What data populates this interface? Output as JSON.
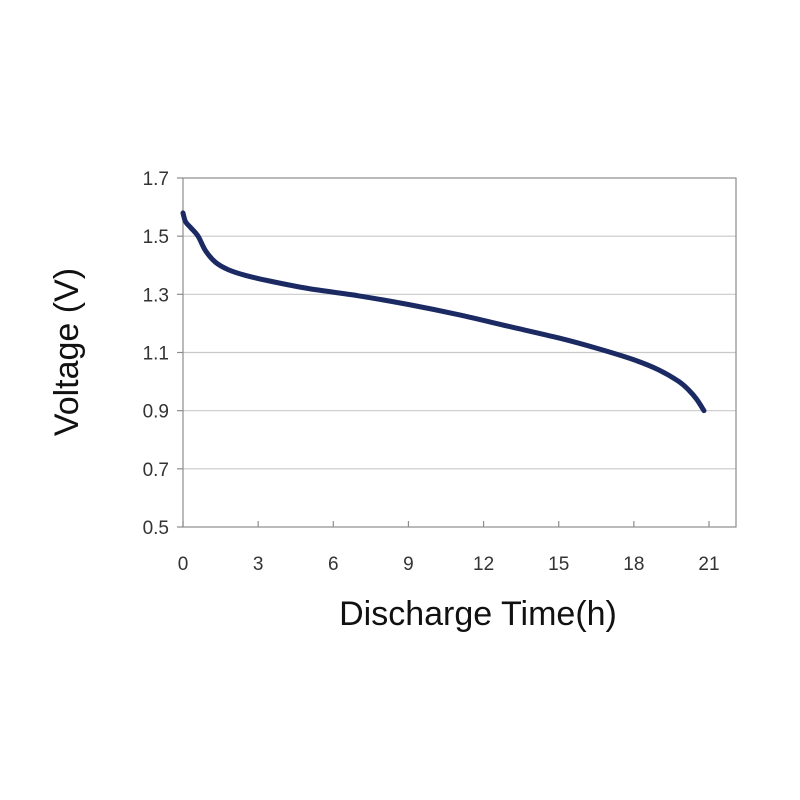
{
  "chart_data": {
    "type": "line",
    "title": "",
    "xlabel": "Discharge Time(h)",
    "ylabel": "Voltage (V)",
    "xlim": [
      0,
      22
    ],
    "ylim": [
      0.5,
      1.7
    ],
    "xticks": [
      "0",
      "3",
      "6",
      "9",
      "12",
      "15",
      "18",
      "21"
    ],
    "yticks": [
      "0.5",
      "0.7",
      "0.9",
      "1.1",
      "1.3",
      "1.5",
      "1.7"
    ],
    "grid": "horizontal",
    "legend": "none",
    "series": [
      {
        "color": "#1b2a63",
        "x": [
          0,
          0.1,
          0.3,
          0.6,
          0.9,
          1.3,
          1.8,
          2.5,
          3.5,
          5,
          7,
          9,
          11,
          13,
          15,
          16.5,
          18,
          19,
          19.8,
          20.2,
          20.5,
          20.8
        ],
        "y": [
          1.58,
          1.55,
          1.53,
          1.5,
          1.45,
          1.41,
          1.385,
          1.365,
          1.345,
          1.32,
          1.295,
          1.265,
          1.23,
          1.19,
          1.15,
          1.115,
          1.075,
          1.04,
          1.0,
          0.97,
          0.94,
          0.9
        ]
      }
    ]
  }
}
